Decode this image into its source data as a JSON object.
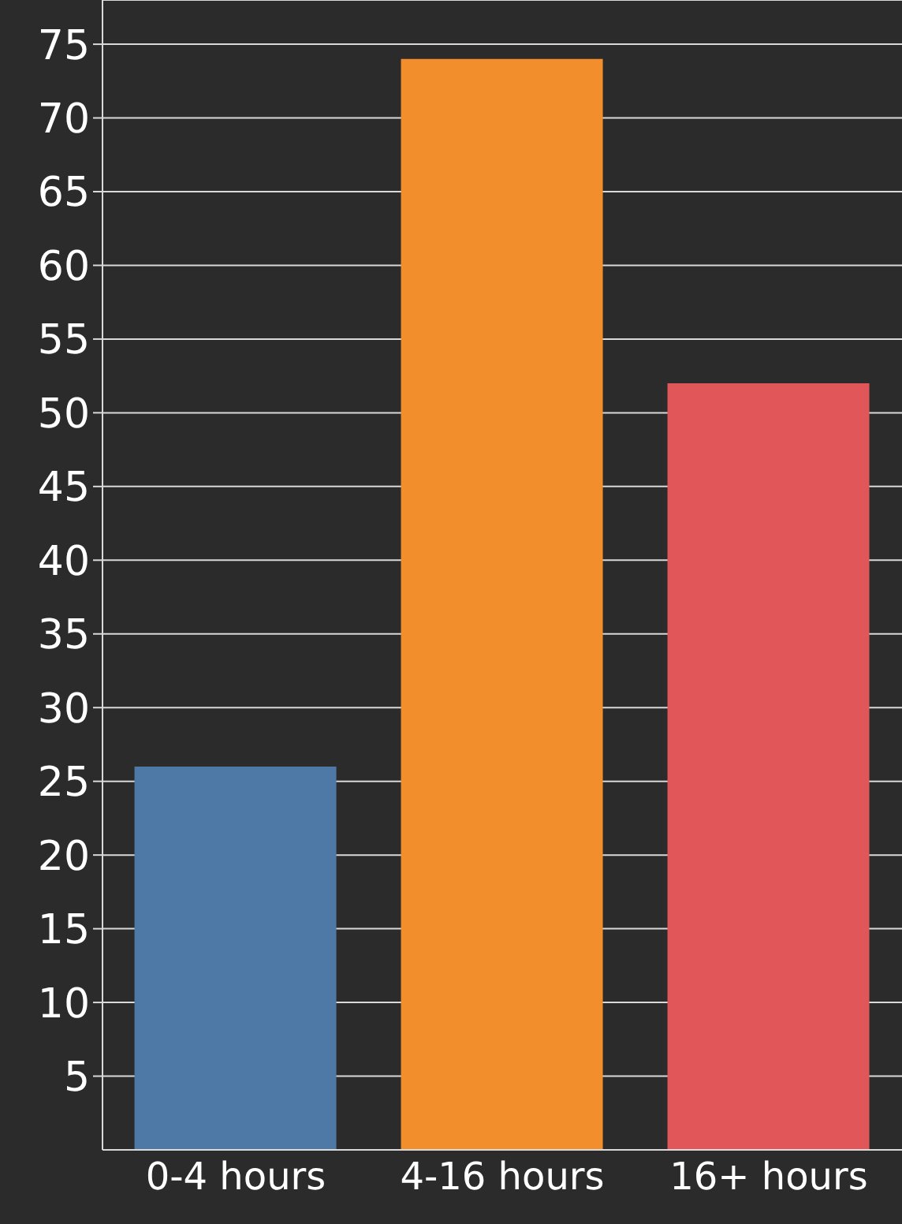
{
  "chart_data": {
    "type": "bar",
    "categories": [
      "0-4 hours",
      "4-16 hours",
      "16+ hours"
    ],
    "values": [
      26,
      74,
      52
    ],
    "colors": [
      "#4e79a7",
      "#f28e2b",
      "#e15759"
    ],
    "ylim": [
      0,
      78
    ],
    "yticks": [
      5,
      10,
      15,
      20,
      25,
      30,
      35,
      40,
      45,
      50,
      55,
      60,
      65,
      70,
      75
    ],
    "grid": "y",
    "legend": false
  }
}
